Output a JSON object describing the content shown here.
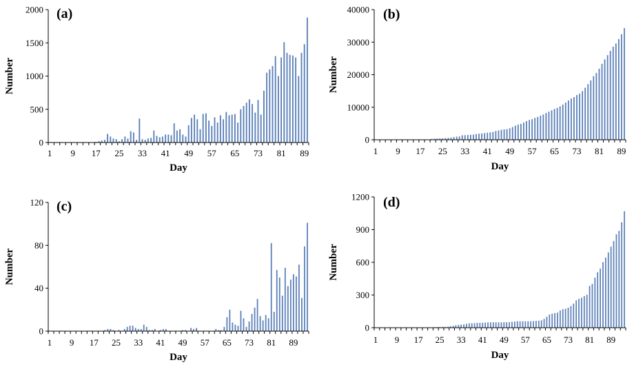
{
  "chart_data": [
    {
      "type": "bar",
      "panel_label": "(a)",
      "xlabel": "Day",
      "ylabel": "Number",
      "ylim": [
        0,
        2000
      ],
      "yticks": [
        0,
        500,
        1000,
        1500,
        2000
      ],
      "xticks": [
        1,
        9,
        17,
        25,
        33,
        41,
        49,
        57,
        65,
        73,
        81,
        89
      ],
      "x_start": 1,
      "values": [
        0,
        0,
        0,
        0,
        0,
        0,
        0,
        0,
        0,
        0,
        0,
        0,
        0,
        0,
        0,
        0,
        10,
        20,
        30,
        40,
        130,
        90,
        60,
        50,
        20,
        50,
        90,
        60,
        170,
        150,
        40,
        360,
        50,
        40,
        60,
        70,
        180,
        100,
        80,
        90,
        120,
        120,
        110,
        290,
        180,
        200,
        120,
        90,
        260,
        370,
        420,
        350,
        200,
        430,
        440,
        330,
        250,
        380,
        300,
        410,
        350,
        460,
        410,
        420,
        430,
        300,
        500,
        550,
        600,
        650,
        580,
        450,
        640,
        420,
        780,
        1050,
        1100,
        1150,
        1300,
        1000,
        1280,
        1510,
        1350,
        1320,
        1310,
        1280,
        1000,
        1350,
        1480,
        1880
      ]
    },
    {
      "type": "bar",
      "panel_label": "(b)",
      "xlabel": "Day",
      "ylabel": "Number",
      "ylim": [
        0,
        40000
      ],
      "yticks": [
        0,
        10000,
        20000,
        30000,
        40000
      ],
      "xticks": [
        1,
        9,
        17,
        25,
        33,
        41,
        49,
        57,
        65,
        73,
        81,
        89
      ],
      "x_start": 1,
      "values": [
        0,
        0,
        0,
        0,
        0,
        0,
        0,
        0,
        0,
        0,
        0,
        0,
        0,
        0,
        0,
        0,
        10,
        30,
        60,
        100,
        230,
        320,
        380,
        430,
        450,
        500,
        590,
        650,
        820,
        970,
        1010,
        1370,
        1420,
        1460,
        1520,
        1590,
        1770,
        1870,
        1950,
        2040,
        2160,
        2280,
        2390,
        2680,
        2860,
        3060,
        3180,
        3270,
        3530,
        3900,
        4320,
        4670,
        4870,
        5300,
        5740,
        6070,
        6320,
        6700,
        7000,
        7410,
        7760,
        8220,
        8630,
        9050,
        9480,
        9780,
        10280,
        10830,
        11430,
        12080,
        12660,
        13110,
        13750,
        14170,
        14950,
        16000,
        17100,
        18250,
        19550,
        20550,
        21830,
        23340,
        24690,
        26010,
        27320,
        28600,
        29600,
        30950,
        32430,
        34310
      ]
    },
    {
      "type": "bar",
      "panel_label": "(c)",
      "xlabel": "Day",
      "ylabel": "Number",
      "ylim": [
        0,
        120
      ],
      "yticks": [
        0,
        40,
        80,
        120
      ],
      "xticks": [
        1,
        9,
        17,
        25,
        33,
        41,
        49,
        57,
        65,
        73,
        81,
        89
      ],
      "x_start": 1,
      "values": [
        0,
        0,
        0,
        0,
        0,
        0,
        0,
        0,
        0,
        0,
        0,
        0,
        0,
        0,
        0,
        0,
        0,
        0,
        0,
        0,
        1,
        2,
        2,
        1,
        0,
        1,
        0,
        2,
        4,
        5,
        5,
        3,
        2,
        2,
        6,
        4,
        1,
        1,
        2,
        0,
        1,
        2,
        2,
        0,
        0,
        0,
        0,
        0,
        1,
        1,
        0,
        3,
        2,
        3,
        0,
        0,
        0,
        0,
        0,
        0,
        2,
        1,
        1,
        4,
        13,
        20,
        8,
        6,
        5,
        19,
        12,
        4,
        9,
        16,
        22,
        30,
        14,
        10,
        15,
        12,
        82,
        18,
        57,
        50,
        33,
        59,
        42,
        48,
        53,
        51,
        62,
        31,
        79,
        101
      ]
    },
    {
      "type": "bar",
      "panel_label": "(d)",
      "xlabel": "Day",
      "ylabel": "Number",
      "ylim": [
        0,
        1200
      ],
      "yticks": [
        0,
        300,
        600,
        900,
        1200
      ],
      "xticks": [
        1,
        9,
        17,
        25,
        33,
        41,
        49,
        57,
        65,
        73,
        81,
        89
      ],
      "x_start": 1,
      "values": [
        0,
        0,
        0,
        0,
        0,
        0,
        0,
        0,
        0,
        0,
        0,
        0,
        0,
        0,
        0,
        0,
        0,
        0,
        0,
        0,
        1,
        3,
        5,
        6,
        6,
        7,
        7,
        9,
        13,
        18,
        23,
        26,
        28,
        30,
        36,
        40,
        41,
        42,
        44,
        44,
        45,
        47,
        49,
        49,
        49,
        49,
        49,
        49,
        50,
        51,
        51,
        54,
        56,
        59,
        59,
        59,
        59,
        59,
        59,
        61,
        63,
        64,
        68,
        80,
        100,
        120,
        128,
        134,
        139,
        158,
        170,
        174,
        183,
        199,
        221,
        251,
        265,
        275,
        290,
        302,
        384,
        402,
        459,
        509,
        542,
        601,
        643,
        691,
        744,
        795,
        857,
        888,
        967,
        1068
      ]
    }
  ]
}
